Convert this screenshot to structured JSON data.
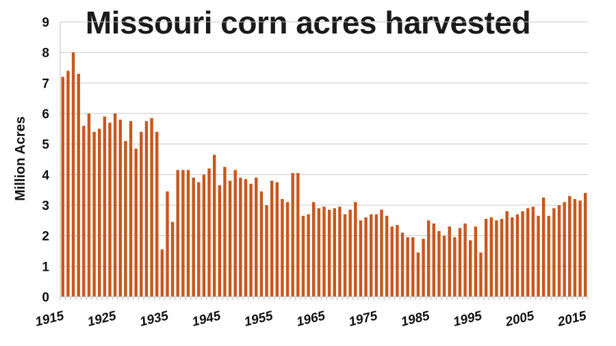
{
  "chart_data": {
    "type": "bar",
    "title": "Missouri corn acres harvested",
    "xlabel": "",
    "ylabel": "Million Acres",
    "ylim": [
      0,
      9
    ],
    "yticks": [
      0,
      1,
      2,
      3,
      4,
      5,
      6,
      7,
      8,
      9
    ],
    "xtick_labels": [
      "1915",
      "1925",
      "1935",
      "1945",
      "1955",
      "1965",
      "1975",
      "1985",
      "1995",
      "2005",
      "2015"
    ],
    "grid": true,
    "legend": "none",
    "bar_color": "#C8571E",
    "x": [
      1915,
      1916,
      1917,
      1918,
      1919,
      1920,
      1921,
      1922,
      1923,
      1924,
      1925,
      1926,
      1927,
      1928,
      1929,
      1930,
      1931,
      1932,
      1933,
      1934,
      1935,
      1936,
      1937,
      1938,
      1939,
      1940,
      1941,
      1942,
      1943,
      1944,
      1945,
      1946,
      1947,
      1948,
      1949,
      1950,
      1951,
      1952,
      1953,
      1954,
      1955,
      1956,
      1957,
      1958,
      1959,
      1960,
      1961,
      1962,
      1963,
      1964,
      1965,
      1966,
      1967,
      1968,
      1969,
      1970,
      1971,
      1972,
      1973,
      1974,
      1975,
      1976,
      1977,
      1978,
      1979,
      1980,
      1981,
      1982,
      1983,
      1984,
      1985,
      1986,
      1987,
      1988,
      1989,
      1990,
      1991,
      1992,
      1993,
      1994,
      1995,
      1996,
      1997,
      1998,
      1999,
      2000,
      2001,
      2002,
      2003,
      2004,
      2005,
      2006,
      2007,
      2008,
      2009,
      2010,
      2011,
      2012,
      2013,
      2014,
      2015
    ],
    "values": [
      7.2,
      7.4,
      8.0,
      7.3,
      5.6,
      6.0,
      5.4,
      5.5,
      5.9,
      5.7,
      6.0,
      5.8,
      5.1,
      5.75,
      4.85,
      5.4,
      5.75,
      5.85,
      5.4,
      1.55,
      3.45,
      2.45,
      4.15,
      4.15,
      4.15,
      3.9,
      3.75,
      4.0,
      4.2,
      4.65,
      3.65,
      4.25,
      3.8,
      4.15,
      3.9,
      3.85,
      3.7,
      3.9,
      3.45,
      3.0,
      3.8,
      3.75,
      3.2,
      3.1,
      4.05,
      4.05,
      2.65,
      2.7,
      3.1,
      2.9,
      2.95,
      2.85,
      2.9,
      2.95,
      2.7,
      2.85,
      3.1,
      2.5,
      2.6,
      2.7,
      2.7,
      2.85,
      2.65,
      2.3,
      2.35,
      2.1,
      1.95,
      1.95,
      1.45,
      1.9,
      2.5,
      2.4,
      2.15,
      2.0,
      2.3,
      1.95,
      2.25,
      2.4,
      1.85,
      2.3,
      1.45,
      2.55,
      2.6,
      2.5,
      2.55,
      2.8,
      2.6,
      2.7,
      2.8,
      2.9,
      2.95,
      2.65,
      3.25,
      2.65,
      2.9,
      3.0,
      3.1,
      3.3,
      3.2,
      3.15,
      3.4
    ]
  }
}
